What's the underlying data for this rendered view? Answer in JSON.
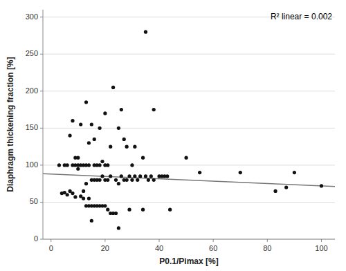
{
  "chart_data": {
    "type": "scatter",
    "xlabel": "P0.1/Pimax [%]",
    "ylabel": "Diaphragm thickening fraction [%]",
    "annotation": "R² linear = 0.002",
    "xlim": [
      -3,
      105
    ],
    "ylim": [
      0,
      310
    ],
    "xticks": [
      0,
      20,
      40,
      60,
      80,
      100
    ],
    "yticks": [
      0,
      50,
      100,
      150,
      200,
      250,
      300
    ],
    "grid": true,
    "series": [
      {
        "type": "scatter",
        "color": "#111111",
        "x": [
          3,
          4,
          5,
          5,
          6,
          6,
          7,
          7,
          8,
          8,
          8,
          9,
          9,
          9,
          10,
          10,
          10,
          11,
          11,
          11,
          12,
          12,
          12,
          13,
          13,
          13,
          13,
          14,
          14,
          14,
          14,
          15,
          15,
          15,
          15,
          16,
          16,
          16,
          16,
          17,
          17,
          17,
          18,
          18,
          18,
          18,
          19,
          19,
          19,
          20,
          20,
          20,
          20,
          21,
          21,
          21,
          22,
          22,
          22,
          23,
          23,
          24,
          24,
          25,
          25,
          25,
          26,
          26,
          27,
          27,
          28,
          28,
          29,
          29,
          30,
          30,
          31,
          31,
          32,
          33,
          34,
          34,
          35,
          35,
          36,
          37,
          38,
          38,
          40,
          41,
          42,
          43,
          44,
          50,
          55,
          70,
          83,
          87,
          90,
          100
        ],
        "values": [
          100,
          62,
          63,
          100,
          60,
          100,
          65,
          140,
          62,
          100,
          160,
          57,
          100,
          110,
          95,
          100,
          110,
          58,
          100,
          155,
          55,
          65,
          100,
          45,
          75,
          100,
          185,
          45,
          55,
          100,
          130,
          25,
          45,
          80,
          155,
          45,
          80,
          100,
          135,
          45,
          80,
          100,
          45,
          80,
          100,
          150,
          45,
          85,
          105,
          45,
          80,
          100,
          170,
          40,
          80,
          100,
          35,
          85,
          125,
          35,
          205,
          35,
          80,
          15,
          75,
          150,
          85,
          175,
          80,
          135,
          80,
          125,
          40,
          85,
          80,
          100,
          85,
          125,
          80,
          85,
          40,
          110,
          280,
          85,
          80,
          85,
          80,
          175,
          85,
          85,
          85,
          85,
          40,
          110,
          90,
          90,
          65,
          70,
          90,
          72
        ]
      },
      {
        "type": "line",
        "color": "#777777",
        "x": [
          -3,
          105
        ],
        "values": [
          88.48,
          71.2
        ]
      }
    ]
  }
}
